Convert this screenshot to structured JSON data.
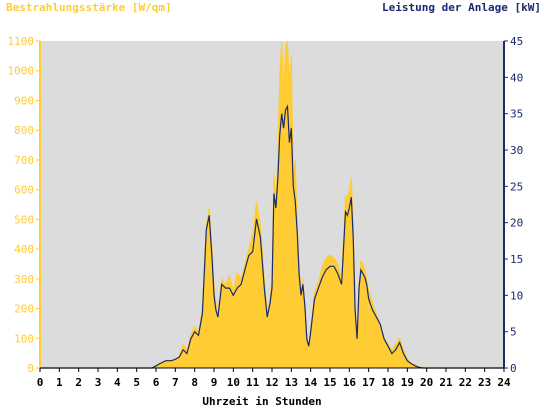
{
  "chart_data": {
    "type": "area",
    "left_axis_title": "Bestrahlungsstärke [W/qm]",
    "right_axis_title": "Leistung der Anlage [kW]",
    "xlabel": "Uhrzeit in Stunden",
    "x_ticks": [
      "0",
      "1",
      "2",
      "3",
      "4",
      "5",
      "6",
      "7",
      "8",
      "9",
      "10",
      "11",
      "12",
      "13",
      "14",
      "15",
      "16",
      "17",
      "18",
      "19",
      "20",
      "21",
      "22",
      "23",
      "24"
    ],
    "xlim": [
      0,
      24
    ],
    "ylim_left": [
      0,
      1100
    ],
    "ylim_right": [
      0,
      45
    ],
    "left_ticks": [
      "0",
      "100",
      "200",
      "300",
      "400",
      "500",
      "600",
      "700",
      "800",
      "900",
      "1000",
      "1100"
    ],
    "right_ticks": [
      "0",
      "5",
      "10",
      "15",
      "20",
      "25",
      "30",
      "35",
      "40",
      "45"
    ],
    "grid": false,
    "colors": {
      "irradiance": "#ffcc33",
      "power": "#1a2a6c",
      "plot_bg": "#dcdcdc",
      "left_axis": "#ffcc33",
      "right_axis": "#1a2a6c"
    },
    "series": [
      {
        "name": "Bestrahlungsstärke [W/qm]",
        "axis": "left",
        "x": [
          0,
          5.8,
          6.0,
          6.2,
          6.5,
          6.8,
          7.0,
          7.2,
          7.4,
          7.6,
          7.8,
          8.0,
          8.2,
          8.4,
          8.6,
          8.75,
          8.9,
          9.0,
          9.1,
          9.2,
          9.4,
          9.6,
          9.8,
          10.0,
          10.2,
          10.4,
          10.6,
          10.8,
          11.0,
          11.2,
          11.4,
          11.6,
          11.75,
          11.9,
          12.0,
          12.1,
          12.2,
          12.3,
          12.4,
          12.5,
          12.6,
          12.7,
          12.8,
          12.9,
          13.0,
          13.1,
          13.2,
          13.3,
          13.4,
          13.5,
          13.6,
          13.7,
          13.8,
          13.9,
          14.0,
          14.2,
          14.4,
          14.6,
          14.8,
          15.0,
          15.2,
          15.4,
          15.6,
          15.8,
          15.9,
          16.0,
          16.1,
          16.2,
          16.3,
          16.4,
          16.5,
          16.6,
          16.7,
          16.8,
          16.9,
          17.0,
          17.2,
          17.4,
          17.6,
          17.8,
          18.0,
          18.2,
          18.4,
          18.6,
          18.8,
          19.0,
          19.2,
          19.4,
          19.6,
          19.8,
          20.0,
          24
        ],
        "y": [
          0,
          0,
          5,
          15,
          25,
          25,
          30,
          40,
          80,
          60,
          110,
          140,
          120,
          200,
          480,
          540,
          400,
          280,
          220,
          170,
          300,
          280,
          310,
          260,
          320,
          300,
          350,
          400,
          450,
          560,
          480,
          300,
          180,
          230,
          300,
          650,
          560,
          700,
          980,
          1100,
          900,
          1080,
          1100,
          950,
          1050,
          630,
          700,
          500,
          330,
          250,
          300,
          200,
          100,
          70,
          130,
          250,
          290,
          340,
          370,
          380,
          370,
          350,
          300,
          580,
          570,
          600,
          640,
          480,
          200,
          100,
          280,
          360,
          350,
          330,
          300,
          260,
          220,
          180,
          140,
          100,
          80,
          60,
          80,
          100,
          60,
          30,
          15,
          10,
          5,
          2,
          0,
          0
        ]
      },
      {
        "name": "Leistung der Anlage [kW]",
        "axis": "right",
        "x": [
          0,
          5.8,
          6.0,
          6.2,
          6.5,
          6.8,
          7.0,
          7.2,
          7.4,
          7.6,
          7.8,
          8.0,
          8.2,
          8.4,
          8.6,
          8.75,
          8.9,
          9.0,
          9.1,
          9.2,
          9.4,
          9.6,
          9.8,
          10.0,
          10.2,
          10.4,
          10.6,
          10.8,
          11.0,
          11.2,
          11.4,
          11.6,
          11.75,
          11.9,
          12.0,
          12.1,
          12.2,
          12.3,
          12.4,
          12.5,
          12.6,
          12.7,
          12.8,
          12.9,
          13.0,
          13.1,
          13.2,
          13.3,
          13.4,
          13.5,
          13.6,
          13.7,
          13.8,
          13.9,
          14.0,
          14.2,
          14.4,
          14.6,
          14.8,
          15.0,
          15.2,
          15.4,
          15.6,
          15.8,
          15.9,
          16.0,
          16.1,
          16.2,
          16.3,
          16.4,
          16.5,
          16.6,
          16.7,
          16.8,
          16.9,
          17.0,
          17.2,
          17.4,
          17.6,
          17.8,
          18.0,
          18.2,
          18.4,
          18.6,
          18.8,
          19.0,
          19.2,
          19.4,
          19.6,
          19.8,
          20.0,
          24
        ],
        "y": [
          0,
          0,
          0.3,
          0.6,
          1,
          1,
          1.2,
          1.5,
          2.5,
          2,
          4,
          5,
          4.5,
          7.5,
          19,
          21,
          15,
          10,
          8,
          7,
          11.5,
          11,
          11,
          10,
          11,
          11.5,
          13.5,
          15.5,
          16,
          20.5,
          18,
          11,
          7,
          9,
          11,
          24,
          22,
          26,
          32,
          35,
          33,
          35.5,
          36,
          31,
          33,
          25,
          23,
          19,
          13,
          10,
          11.5,
          8.5,
          4,
          3,
          5,
          9.5,
          11,
          12.5,
          13.5,
          14,
          14,
          13,
          11.5,
          21.5,
          21,
          22,
          23.5,
          18,
          8,
          4,
          11,
          13.5,
          13,
          12.5,
          11.5,
          9.5,
          8,
          7,
          6,
          4,
          3,
          2,
          2.5,
          3.5,
          2,
          1,
          0.6,
          0.3,
          0.1,
          0,
          0,
          0
        ]
      }
    ]
  }
}
